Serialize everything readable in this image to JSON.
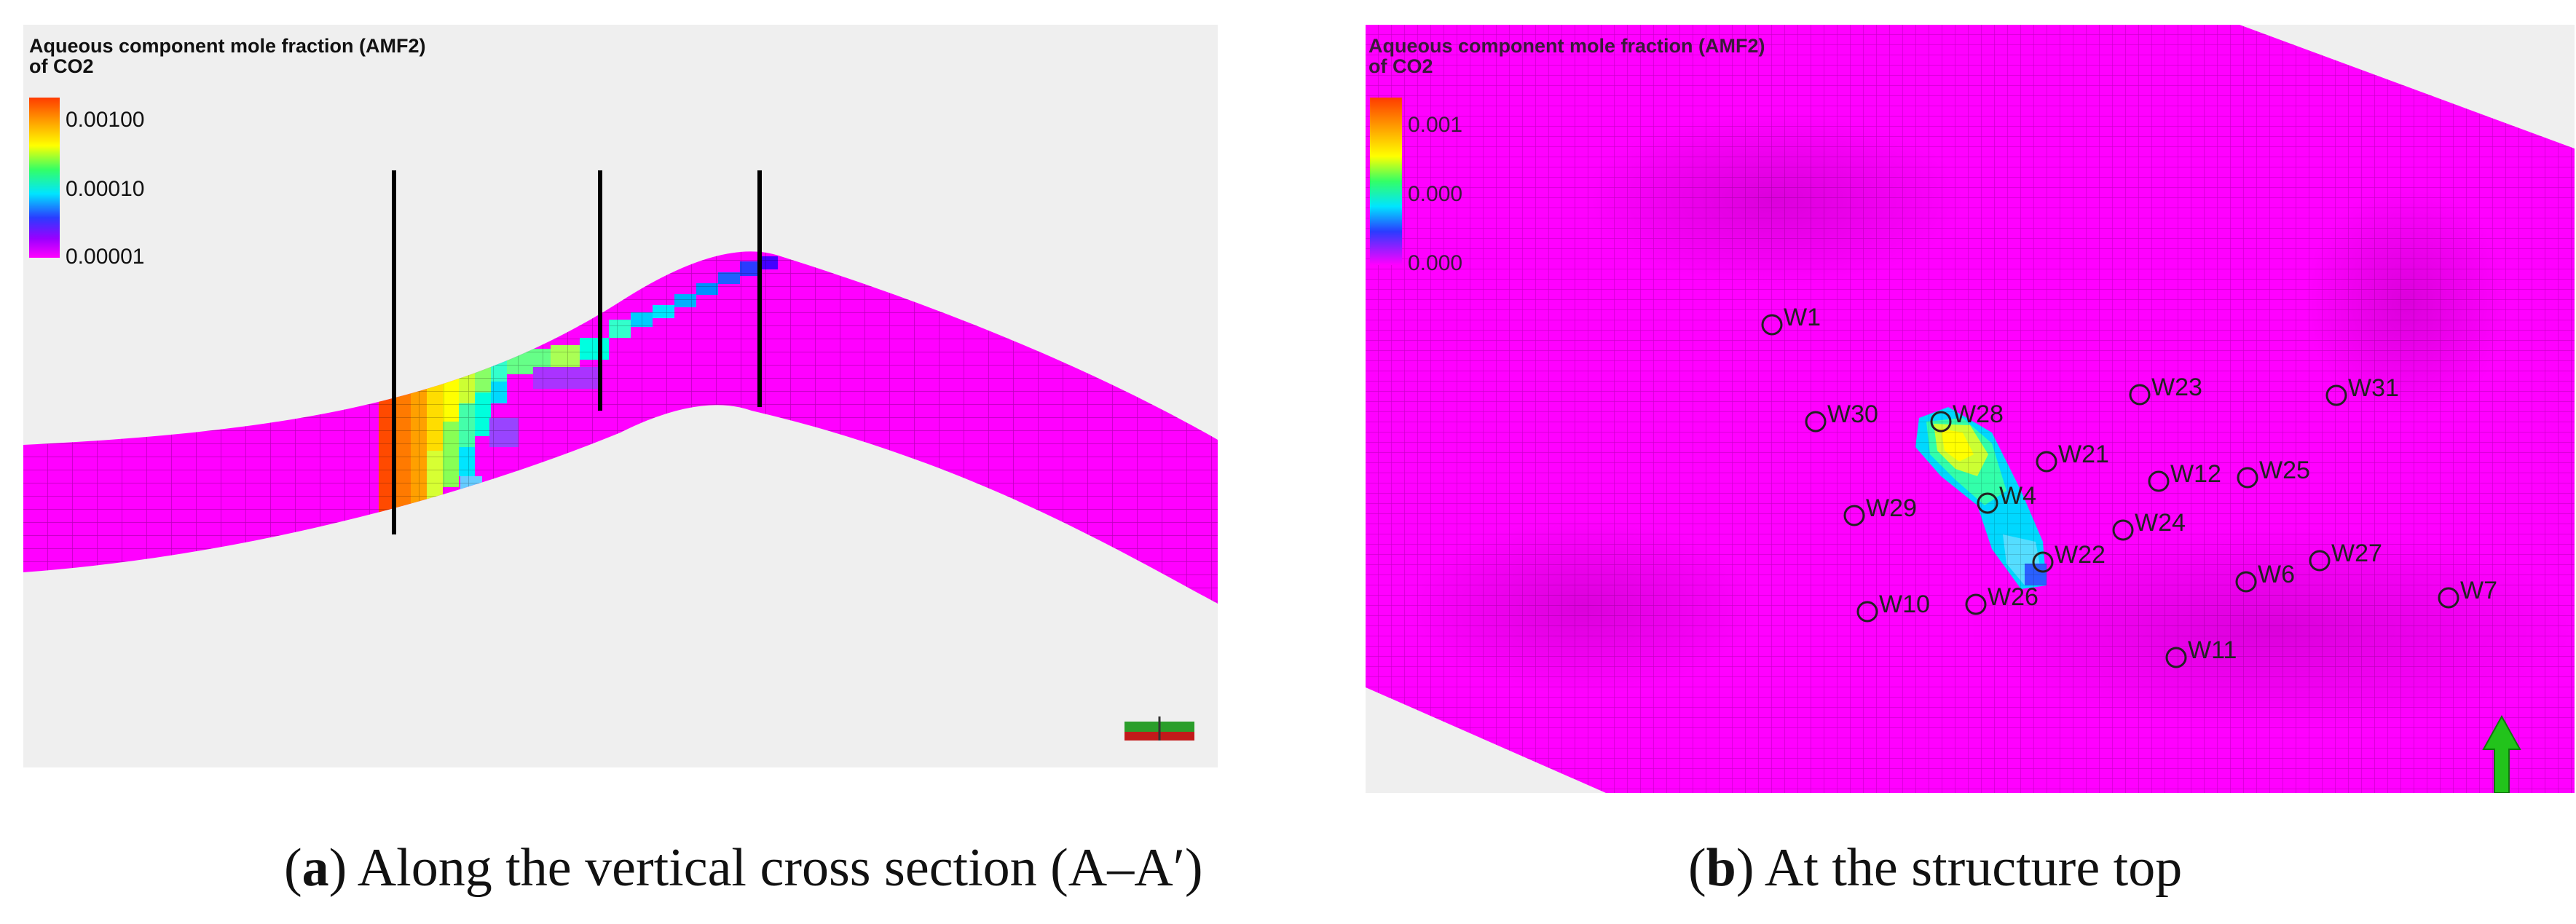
{
  "panel_a": {
    "legend_title_line1": "Aqueous component mole fraction (AMF2)",
    "legend_title_line2": "of CO2",
    "legend_ticks": [
      "0.00100",
      "0.00010",
      "0.00001"
    ],
    "caption_letter": "a",
    "caption_text": "Along the vertical cross section (A–A′)"
  },
  "panel_b": {
    "legend_title_line1": "Aqueous component mole fraction (AMF2)",
    "legend_title_line2": "of CO2",
    "legend_ticks": [
      "0.001",
      "0.000",
      "0.000"
    ],
    "caption_letter": "b",
    "caption_text": "At the structure top",
    "wells": [
      "W1",
      "W30",
      "W28",
      "W23",
      "W31",
      "W21",
      "W12",
      "W25",
      "W29",
      "W4",
      "W24",
      "W22",
      "W27",
      "W6",
      "W7",
      "W10",
      "W26",
      "W11"
    ]
  },
  "colors": {
    "reservoir": "#ff00ff",
    "background_panel": "#efefef",
    "plume_high": "#ff5a00",
    "plume_mid": "#ffff00",
    "plume_low": "#00e0ff",
    "north_arrow": "#22c31b"
  }
}
